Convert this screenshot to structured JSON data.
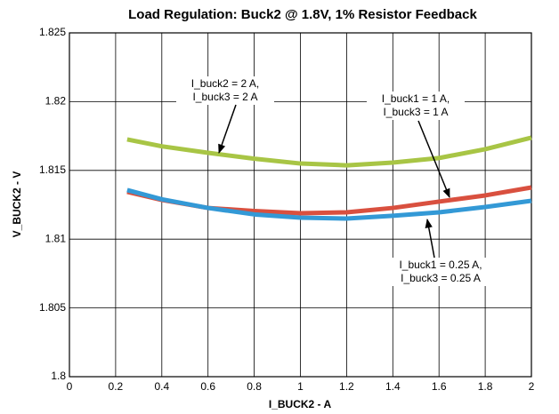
{
  "chart_data": {
    "type": "line",
    "title": "Load Regulation: Buck2 @ 1.8V, 1% Resistor Feedback",
    "x_label": "I_BUCK2 - A",
    "y_label": "V_BUCK2 - V",
    "x": [
      0.25,
      0.4,
      0.6,
      0.8,
      1.0,
      1.2,
      1.4,
      1.6,
      1.8,
      2.0
    ],
    "series": [
      {
        "name": "I_buck2 = 2 A, I_buck3 = 2 A",
        "color": "#a8c545",
        "values": [
          1.81725,
          1.81675,
          1.81628,
          1.81585,
          1.8155,
          1.81537,
          1.81557,
          1.8159,
          1.81654,
          1.81738
        ]
      },
      {
        "name": "I_buck1 = 1 A, I_buck3 = 1 A",
        "color": "#d9503f",
        "values": [
          1.81344,
          1.81285,
          1.81227,
          1.81205,
          1.81189,
          1.81195,
          1.81227,
          1.81273,
          1.81318,
          1.81376
        ]
      },
      {
        "name": "I_buck1 = 0.25 A, I_buck3 = 0.25 A",
        "color": "#3399d6",
        "values": [
          1.81357,
          1.8129,
          1.81227,
          1.8118,
          1.81156,
          1.8115,
          1.8117,
          1.81195,
          1.81234,
          1.81279
        ]
      }
    ],
    "annotations": [
      {
        "lines": [
          "I_buck2 = 2 A,",
          "I_buck3 = 2 A"
        ]
      },
      {
        "lines": [
          "I_buck1 = 1 A,",
          "I_buck3 = 1 A"
        ]
      },
      {
        "lines": [
          "I_buck1 = 0.25 A,",
          "I_buck3 = 0.25 A"
        ]
      }
    ],
    "xlim": [
      0,
      2
    ],
    "xticks": [
      0,
      0.2,
      0.4,
      0.6,
      0.8,
      1,
      1.2,
      1.4,
      1.6,
      1.8,
      2
    ],
    "ylim": [
      1.8,
      1.825
    ],
    "yticks": [
      1.8,
      1.805,
      1.81,
      1.815,
      1.82,
      1.825
    ],
    "grid": true
  }
}
